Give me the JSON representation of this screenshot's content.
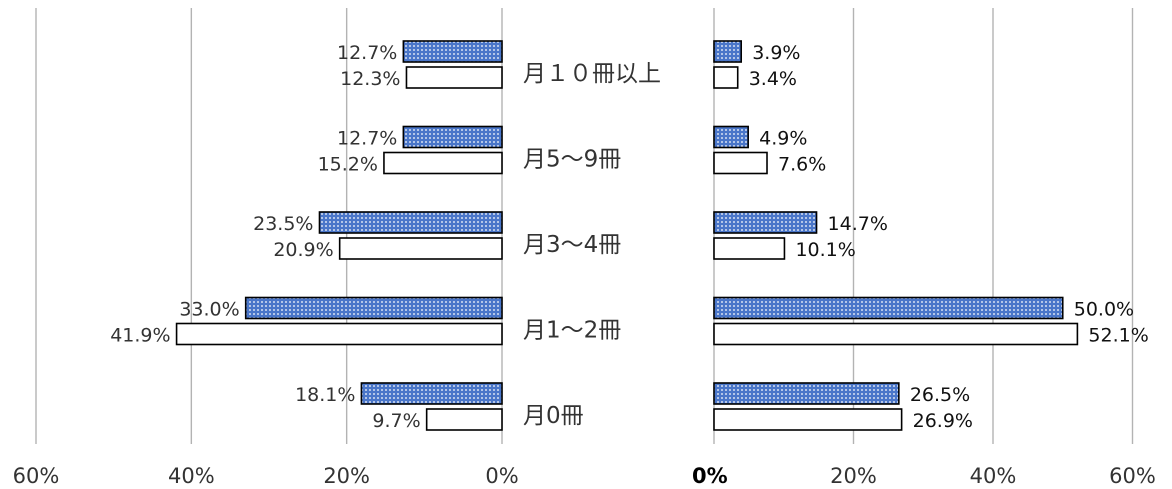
{
  "chart_data": {
    "type": "bar",
    "orientation": "horizontal",
    "layout": "two-panel butterfly",
    "categories": [
      "月１０冊以上",
      "月5〜9冊",
      "月3〜4冊",
      "月1〜2冊",
      "月0冊"
    ],
    "panels": [
      {
        "side": "left",
        "xlim": [
          0,
          60
        ],
        "ticks": [
          "60%",
          "40%",
          "20%",
          "0%"
        ],
        "series": [
          {
            "values": [
              12.7,
              12.7,
              23.5,
              33.0,
              18.1
            ],
            "labels": [
              "12.7%",
              "12.7%",
              "23.5%",
              "33.0%",
              "18.1%"
            ],
            "style": "dotted-blue"
          },
          {
            "values": [
              12.3,
              15.2,
              20.9,
              41.9,
              9.7
            ],
            "labels": [
              "12.3%",
              "15.2%",
              "20.9%",
              "41.9%",
              "9.7%"
            ],
            "style": "white"
          }
        ]
      },
      {
        "side": "right",
        "xlim": [
          0,
          60
        ],
        "ticks": [
          "0%",
          "20%",
          "40%",
          "60%"
        ],
        "series": [
          {
            "values": [
              3.9,
              4.9,
              14.7,
              50.0,
              26.5
            ],
            "labels": [
              "3.9%",
              "4.9%",
              "14.7%",
              "50.0%",
              "26.5%"
            ],
            "style": "dotted-blue"
          },
          {
            "values": [
              3.4,
              7.6,
              10.1,
              52.1,
              26.9
            ],
            "labels": [
              "3.4%",
              "7.6%",
              "10.1%",
              "52.1%",
              "26.9%"
            ],
            "style": "white"
          }
        ]
      }
    ],
    "grid": true,
    "legend": "none",
    "colors": {
      "dotted_fill": "#4a76c9",
      "dot": "#ffffff",
      "white_fill": "#ffffff",
      "bar_edge": "#000000",
      "gridline": "#b3b3b3"
    }
  }
}
